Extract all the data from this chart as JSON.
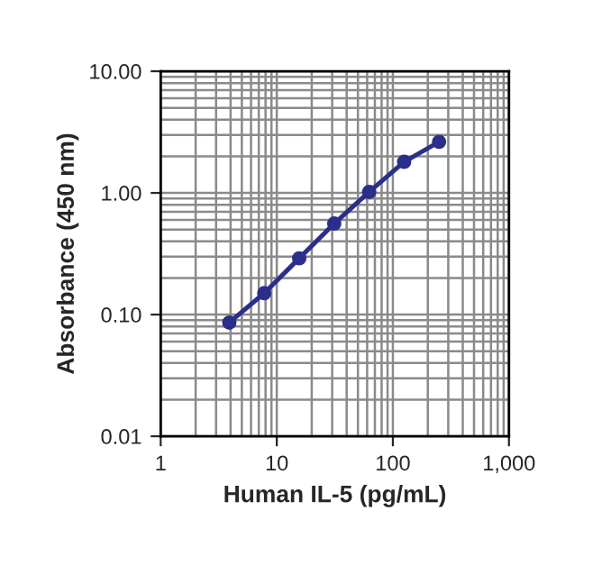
{
  "chart_data": {
    "type": "line",
    "xlabel": "Human IL-5 (pg/mL)",
    "ylabel": "Absorbance (450 nm)",
    "x": [
      3.9,
      7.8,
      15.6,
      31.25,
      62.5,
      125,
      250
    ],
    "series": [
      {
        "color": "#2b2f8a",
        "values": [
          0.086,
          0.15,
          0.29,
          0.56,
          1.02,
          1.8,
          2.63
        ]
      }
    ],
    "log": "xy",
    "xlim": [
      1,
      1000
    ],
    "ylim": [
      0.01,
      10
    ],
    "xticks": [
      1,
      10,
      100,
      {
        "value": 1000,
        "label": "1,000"
      }
    ],
    "yticks": [
      {
        "value": 0.01,
        "label": "0.01"
      },
      {
        "value": 0.1,
        "label": "0.10"
      },
      {
        "value": 1,
        "label": "1.00"
      },
      {
        "value": 10,
        "label": "10.00"
      }
    ],
    "grid": true,
    "marker": "circle",
    "line_style": "solid",
    "legend": false
  }
}
